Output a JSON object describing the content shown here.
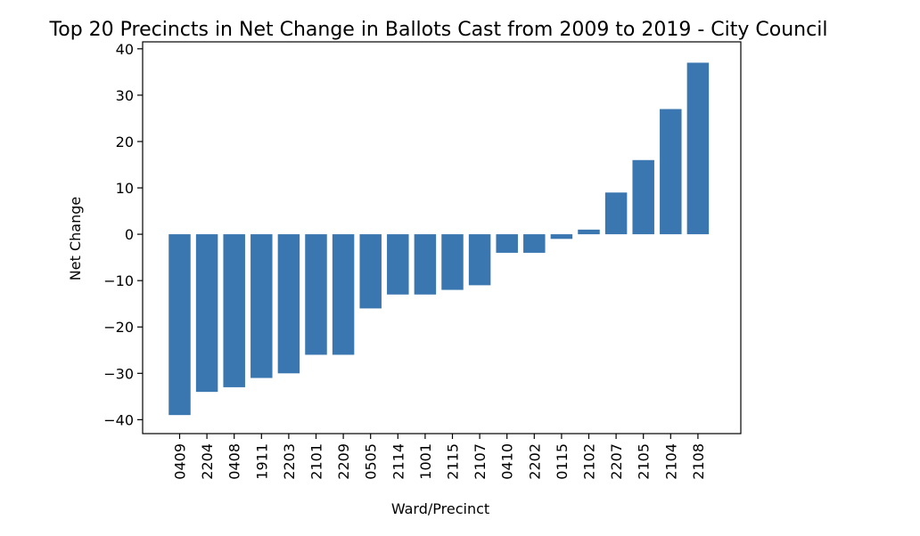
{
  "chart_data": {
    "type": "bar",
    "title": "Top 20 Precincts in Net Change in Ballots Cast from 2009 to 2019 - City Council",
    "xlabel": "Ward/Precinct",
    "ylabel": "Net Change",
    "categories": [
      "0409",
      "2204",
      "0408",
      "1911",
      "2203",
      "2101",
      "2209",
      "0505",
      "2114",
      "1001",
      "2115",
      "2107",
      "0410",
      "2202",
      "0115",
      "2102",
      "2207",
      "2105",
      "2104",
      "2108"
    ],
    "values": [
      -39,
      -34,
      -33,
      -31,
      -30,
      -26,
      -26,
      -16,
      -13,
      -13,
      -12,
      -11,
      -4,
      -4,
      -1,
      1,
      9,
      16,
      27,
      37
    ],
    "ylim": [
      -43,
      41.5
    ],
    "yticks": [
      40,
      30,
      20,
      10,
      0,
      -10,
      -20,
      -30,
      -40
    ],
    "ytick_labels": [
      "40",
      "30",
      "20",
      "10",
      "0",
      "−10",
      "−20",
      "−30",
      "−40"
    ],
    "bar_color": "#3a76af",
    "grid": false,
    "legend": "none"
  }
}
